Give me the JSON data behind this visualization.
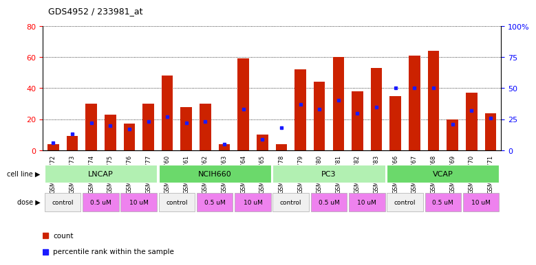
{
  "title": "GDS4952 / 233981_at",
  "samples": [
    "GSM1359772",
    "GSM1359773",
    "GSM1359774",
    "GSM1359775",
    "GSM1359776",
    "GSM1359777",
    "GSM1359760",
    "GSM1359761",
    "GSM1359762",
    "GSM1359763",
    "GSM1359764",
    "GSM1359765",
    "GSM1359778",
    "GSM1359779",
    "GSM1359780",
    "GSM1359781",
    "GSM1359782",
    "GSM1359783",
    "GSM1359766",
    "GSM1359767",
    "GSM1359768",
    "GSM1359769",
    "GSM1359770",
    "GSM1359771"
  ],
  "red_values": [
    4,
    9,
    30,
    23,
    17,
    30,
    48,
    28,
    30,
    4,
    59,
    10,
    4,
    52,
    44,
    60,
    38,
    53,
    35,
    61,
    64,
    20,
    37,
    24
  ],
  "blue_values": [
    6,
    13,
    22,
    20,
    17,
    23,
    27,
    22,
    23,
    5,
    33,
    9,
    18,
    37,
    33,
    40,
    30,
    35,
    50,
    50,
    50,
    21,
    32,
    26
  ],
  "cell_lines": [
    "LNCAP",
    "NCIH660",
    "PC3",
    "VCAP"
  ],
  "cell_line_ranges": [
    [
      0,
      5
    ],
    [
      6,
      11
    ],
    [
      12,
      17
    ],
    [
      18,
      23
    ]
  ],
  "cell_line_colors": [
    "#b2f0b2",
    "#6bd96b",
    "#b2f0b2",
    "#6bd96b"
  ],
  "dose_groups": [
    {
      "label": "control",
      "range": [
        0,
        1
      ],
      "color": "#f0f0f0"
    },
    {
      "label": "0.5 uM",
      "range": [
        2,
        3
      ],
      "color": "#ee82ee"
    },
    {
      "label": "10 uM",
      "range": [
        4,
        5
      ],
      "color": "#ee82ee"
    },
    {
      "label": "control",
      "range": [
        6,
        7
      ],
      "color": "#f0f0f0"
    },
    {
      "label": "0.5 uM",
      "range": [
        8,
        9
      ],
      "color": "#ee82ee"
    },
    {
      "label": "10 uM",
      "range": [
        10,
        11
      ],
      "color": "#ee82ee"
    },
    {
      "label": "control",
      "range": [
        12,
        13
      ],
      "color": "#f0f0f0"
    },
    {
      "label": "0.5 uM",
      "range": [
        14,
        15
      ],
      "color": "#ee82ee"
    },
    {
      "label": "10 uM",
      "range": [
        16,
        17
      ],
      "color": "#ee82ee"
    },
    {
      "label": "control",
      "range": [
        18,
        19
      ],
      "color": "#f0f0f0"
    },
    {
      "label": "0.5 uM",
      "range": [
        20,
        21
      ],
      "color": "#ee82ee"
    },
    {
      "label": "10 uM",
      "range": [
        22,
        23
      ],
      "color": "#ee82ee"
    }
  ],
  "bar_color": "#cc2200",
  "blue_color": "#1a1aff",
  "ylim_left": [
    0,
    80
  ],
  "ylim_right": [
    0,
    100
  ],
  "yticks_left": [
    0,
    20,
    40,
    60,
    80
  ],
  "ytick_labels_left": [
    "0",
    "20",
    "40",
    "60",
    "80"
  ],
  "yticks_right_vals": [
    0,
    25,
    50,
    75,
    100
  ],
  "ytick_labels_right": [
    "0",
    "25",
    "50",
    "75",
    "100%"
  ]
}
